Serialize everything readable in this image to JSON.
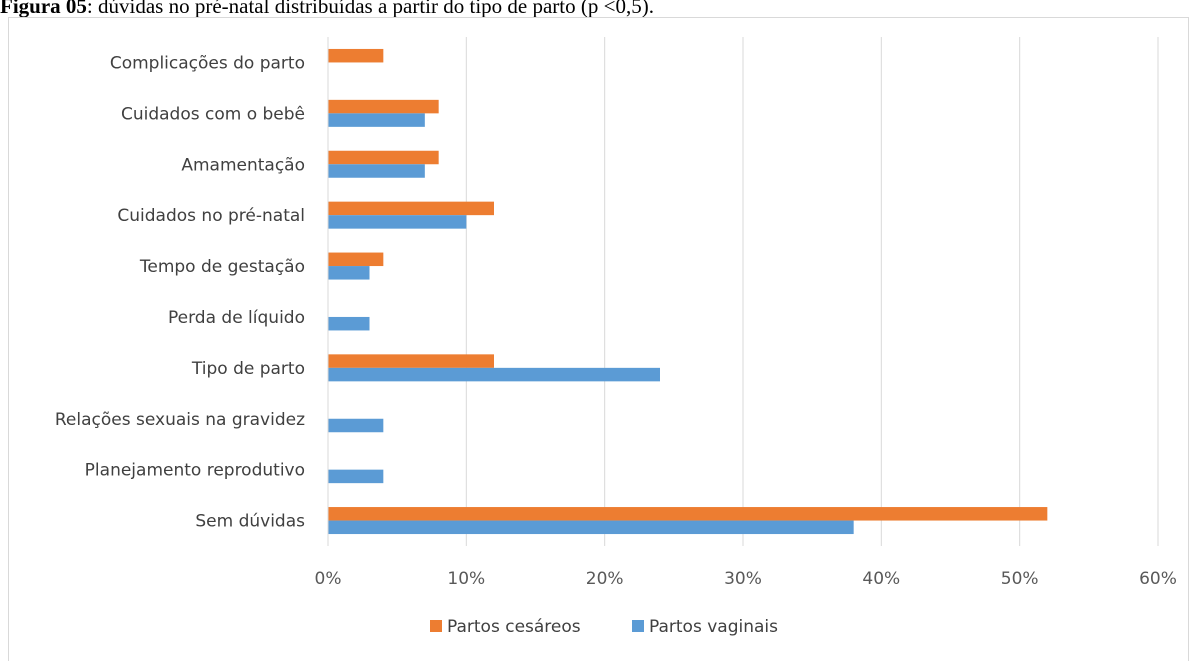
{
  "caption": {
    "bold": "Figura 05",
    "rest": ": dúvidas no pré-natal distribuídas a partir do tipo de parto (p <0,5)."
  },
  "chart_data": {
    "type": "bar",
    "orientation": "horizontal",
    "title": "",
    "xlabel": "",
    "ylabel": "",
    "categories": [
      "Complicações do parto",
      "Cuidados com o bebê",
      "Amamentação",
      "Cuidados no pré-natal",
      "Tempo de gestação",
      "Perda de líquido",
      "Tipo de parto",
      "Relações sexuais na gravidez",
      "Planejamento reprodutivo",
      "Sem dúvidas"
    ],
    "series": [
      {
        "name": "Partos cesáreos",
        "color": "#ed7d31",
        "values": [
          4,
          8,
          8,
          12,
          4,
          0,
          12,
          0,
          0,
          52
        ]
      },
      {
        "name": "Partos vaginais",
        "color": "#5b9bd5",
        "values": [
          0,
          7,
          7,
          10,
          3,
          3,
          24,
          4,
          4,
          38
        ]
      }
    ],
    "xlim": [
      0,
      60
    ],
    "xticks": [
      "0%",
      "10%",
      "20%",
      "30%",
      "40%",
      "50%",
      "60%"
    ],
    "grid": true,
    "legend_position": "bottom"
  }
}
